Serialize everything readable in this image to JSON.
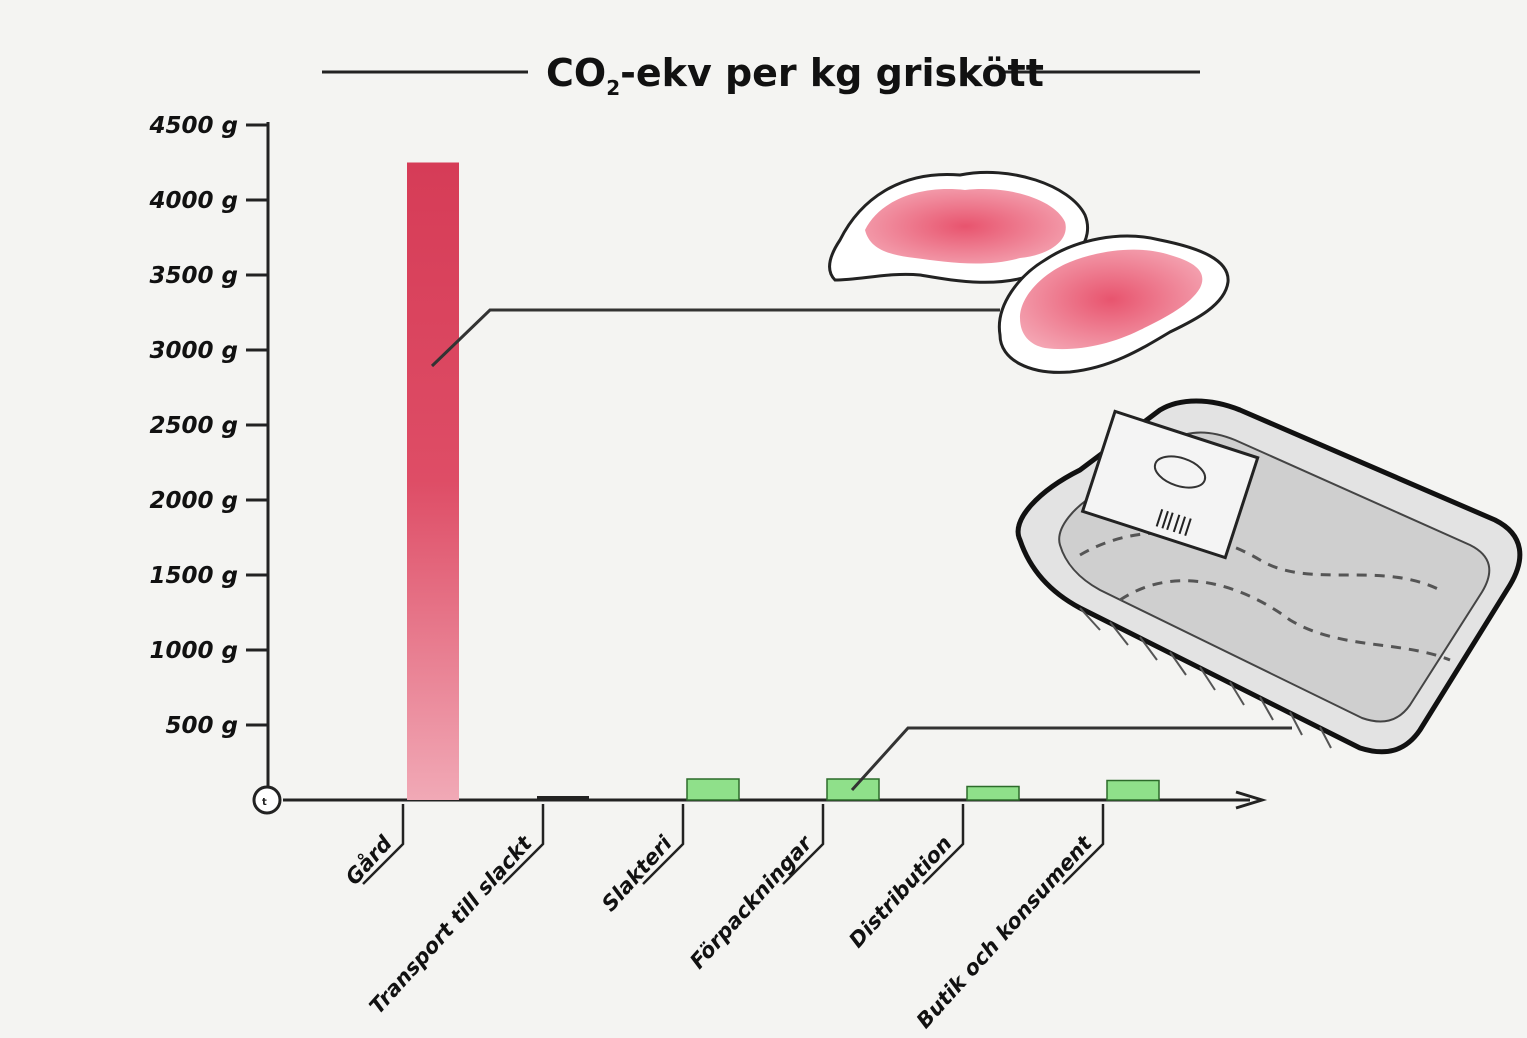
{
  "chart_data": {
    "type": "bar",
    "title": "CO₂-ekv per kg griskött",
    "title_main": "CO",
    "title_sub": "2",
    "title_rest": "-ekv per kg griskött",
    "categories": [
      "Gård",
      "Transport till slackt",
      "Slakteri",
      "Förpackningar",
      "Distribution",
      "Butik och konsument"
    ],
    "values": [
      4250,
      10,
      140,
      140,
      90,
      130
    ],
    "tick_labels": [
      "500 g",
      "1000 g",
      "1500 g",
      "2000 g",
      "2500 g",
      "3000 g",
      "3500 g",
      "4000 g",
      "4500 g"
    ],
    "tick_values": [
      500,
      1000,
      1500,
      2000,
      2500,
      3000,
      3500,
      4000,
      4500
    ],
    "ylim": [
      0,
      4500
    ],
    "grid": false,
    "colors": {
      "farm_bar": "#dc4a63",
      "other_bars": "#8fe08a",
      "transport_bar": "#222222"
    }
  },
  "illustrations": {
    "meat": "pork-chops-illustration",
    "package": "meat-tray-package-illustration"
  }
}
